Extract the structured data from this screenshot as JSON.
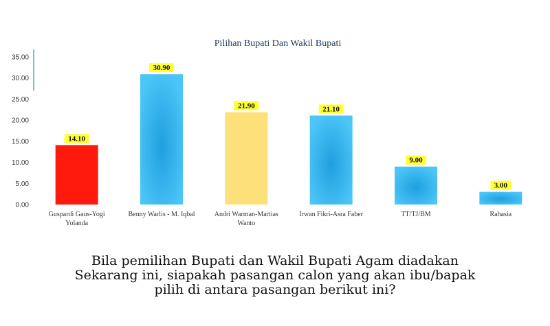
{
  "chart_data": {
    "type": "bar",
    "title": "Pilihan Bupati Dan Wakil Bupati",
    "categories": [
      [
        "Guspardi Gaus-Yogi",
        "Yolanda"
      ],
      [
        "Benny Warlis - M. Iqbal"
      ],
      [
        "Andri Warman-Martias",
        "Wanto"
      ],
      [
        "Irwan Fikri-Asra Faber"
      ],
      [
        "TT/TJ/BM"
      ],
      [
        "Rahasia"
      ]
    ],
    "values": [
      14.1,
      30.9,
      21.9,
      21.1,
      9.0,
      3.0
    ],
    "data_labels": [
      "14.10",
      "30.90",
      "21.90",
      "21.10",
      "9.00",
      "3.00"
    ],
    "colors": [
      "#ff1a0d",
      "#36b4f0",
      "#fce07a",
      "#36b4f0",
      "#36b4f0",
      "#36b4f0"
    ],
    "ylim": [
      0,
      35
    ],
    "yticks": [
      "0.00",
      "5.00",
      "10.00",
      "15.00",
      "20.00",
      "25.00",
      "30.00",
      "35.00"
    ],
    "grid": false,
    "legend": "none"
  },
  "question": {
    "line1": "Bila pemilihan Bupati dan Wakil Bupati Agam diadakan",
    "line2": "Sekarang ini, siapakah pasangan calon yang akan ibu/bapak",
    "line3": "pilih di antara pasangan berikut ini?"
  }
}
